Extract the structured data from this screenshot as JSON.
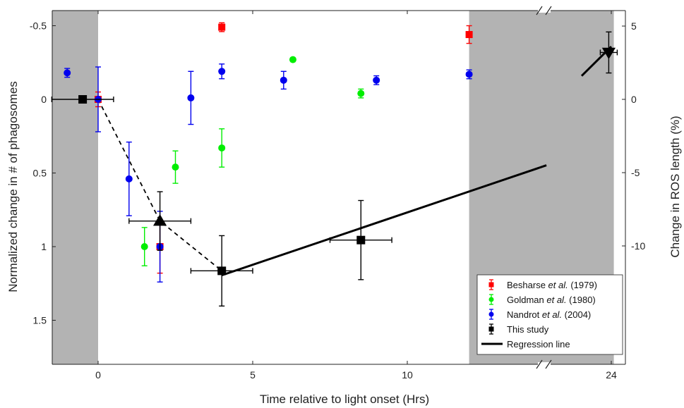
{
  "chart_data": {
    "type": "scatter",
    "xlabel": "Time relative to light onset (Hrs)",
    "ylabel_left": "Normalized change in # of phagosomes",
    "ylabel_right": "Change in ROS length (%)",
    "x_ticks": [
      {
        "value": 0,
        "label": "0"
      },
      {
        "value": 5,
        "label": "5"
      },
      {
        "value": 10,
        "label": "10"
      },
      {
        "value": 24,
        "label": "24"
      }
    ],
    "y_left_ticks": [
      {
        "value": -0.5,
        "label": "-0.5"
      },
      {
        "value": 0,
        "label": "0"
      },
      {
        "value": 0.5,
        "label": "0.5"
      },
      {
        "value": 1,
        "label": "1"
      },
      {
        "value": 1.5,
        "label": "1.5"
      }
    ],
    "y_right_ticks": [
      {
        "value": 5,
        "label": "5"
      },
      {
        "value": 0,
        "label": "0"
      },
      {
        "value": -5,
        "label": "-5"
      },
      {
        "value": -10,
        "label": "-10"
      }
    ],
    "y_left_range_reversed": [
      -0.6,
      1.8
    ],
    "y_right_range": [
      -15,
      5
    ],
    "axis_break_marks": "//",
    "shaded_dark_periods": [
      {
        "from": -1.5,
        "to": 0
      },
      {
        "from": 12,
        "to": 24.3
      }
    ],
    "legend_placement": "bottom-right",
    "series": [
      {
        "name_parts": [
          "Besharse ",
          "et al.",
          " (1979)"
        ],
        "color": "#ff0000",
        "marker": "square",
        "points": [
          {
            "x": 0,
            "y": 0,
            "err": 0.05
          },
          {
            "x": 2,
            "y": 1.0,
            "err": 0.18
          },
          {
            "x": 4,
            "y": -0.49,
            "err": 0.03
          },
          {
            "x": 12,
            "y": -0.44,
            "err": 0.06
          }
        ]
      },
      {
        "name_parts": [
          "Goldman ",
          "et al.",
          " (1980)"
        ],
        "color": "#00ee00",
        "marker": "circle",
        "points": [
          {
            "x": 1.5,
            "y": 1.0,
            "err": 0.13
          },
          {
            "x": 2.5,
            "y": 0.46,
            "err": 0.11
          },
          {
            "x": 4,
            "y": 0.33,
            "err": 0.13
          },
          {
            "x": 6.3,
            "y": -0.27,
            "err": 0.01
          },
          {
            "x": 8.5,
            "y": -0.04,
            "err": 0.03
          }
        ]
      },
      {
        "name_parts": [
          "Nandrot ",
          "et al.",
          " (2004)"
        ],
        "color": "#0000ee",
        "marker": "circle",
        "points": [
          {
            "x": -1,
            "y": -0.18,
            "err": 0.03
          },
          {
            "x": 0,
            "y": 0,
            "err": 0.22
          },
          {
            "x": 1,
            "y": 0.54,
            "err": 0.25
          },
          {
            "x": 2,
            "y": 1.0,
            "err": 0.24
          },
          {
            "x": 3,
            "y": -0.01,
            "err": 0.18
          },
          {
            "x": 4,
            "y": -0.19,
            "err": 0.05
          },
          {
            "x": 6,
            "y": -0.13,
            "err": 0.06
          },
          {
            "x": 9,
            "y": -0.13,
            "err": 0.03
          },
          {
            "x": 12,
            "y": -0.17,
            "err": 0.03
          }
        ]
      },
      {
        "name_parts": [
          "This study"
        ],
        "color": "#000000",
        "marker": "square",
        "y_axis": "right",
        "points": [
          {
            "x": -0.5,
            "y": 0,
            "xerr": 1.0,
            "err": 0
          },
          {
            "x": 2,
            "y": -8.3,
            "xerr": 1.0,
            "err": 2.0,
            "marker": "triangle-up"
          },
          {
            "x": 4,
            "y": -11.7,
            "xerr": 1.0,
            "err": 2.4
          },
          {
            "x": 8.5,
            "y": -9.6,
            "xerr": 1.0,
            "err": 2.7
          },
          {
            "x": 23.7,
            "y": 3.2,
            "xerr": 1.0,
            "err": 1.4,
            "marker": "triangle-down"
          }
        ]
      }
    ],
    "lines": [
      {
        "name": "dashed-fit",
        "style": "dashed",
        "y_axis": "right",
        "points": [
          {
            "x": 0,
            "y": 0
          },
          {
            "x": 2,
            "y": -8.3
          },
          {
            "x": 4,
            "y": -11.7
          }
        ]
      },
      {
        "name": "Regression line",
        "style": "solid",
        "y_axis": "right",
        "points": [
          {
            "x": 4.0,
            "y": -12.0
          },
          {
            "x": 14.5,
            "y": -4.5
          }
        ]
      },
      {
        "name": "Regression line extension",
        "style": "solid",
        "y_axis": "right",
        "points": [
          {
            "x": 20.5,
            "y": 1.6
          },
          {
            "x": 24,
            "y": 3.6
          }
        ]
      }
    ],
    "legend": [
      {
        "name_parts": [
          "Besharse ",
          "et al.",
          " (1979)"
        ],
        "color": "#ff0000",
        "marker": "square"
      },
      {
        "name_parts": [
          "Goldman ",
          "et al.",
          " (1980)"
        ],
        "color": "#00ee00",
        "marker": "circle"
      },
      {
        "name_parts": [
          "Nandrot ",
          "et al.",
          " (2004)"
        ],
        "color": "#0000ee",
        "marker": "circle"
      },
      {
        "name_parts": [
          "This study"
        ],
        "color": "#000000",
        "marker": "square"
      },
      {
        "name_parts": [
          "Regression line"
        ],
        "color": "#000000",
        "marker": "line"
      }
    ],
    "colors": {
      "shade": "#b3b3b3",
      "axis": "#222222"
    }
  }
}
